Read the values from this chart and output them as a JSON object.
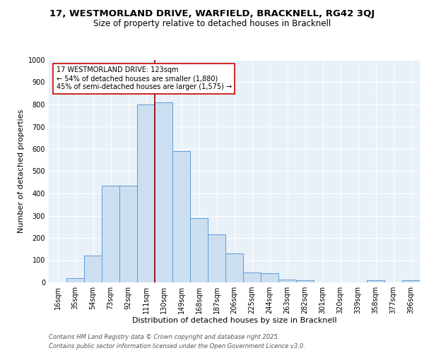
{
  "title_line1": "17, WESTMORLAND DRIVE, WARFIELD, BRACKNELL, RG42 3QJ",
  "title_line2": "Size of property relative to detached houses in Bracknell",
  "xlabel": "Distribution of detached houses by size in Bracknell",
  "ylabel": "Number of detached properties",
  "bar_labels": [
    "16sqm",
    "35sqm",
    "54sqm",
    "73sqm",
    "92sqm",
    "111sqm",
    "130sqm",
    "149sqm",
    "168sqm",
    "187sqm",
    "206sqm",
    "225sqm",
    "244sqm",
    "263sqm",
    "282sqm",
    "301sqm",
    "320sqm",
    "339sqm",
    "358sqm",
    "377sqm",
    "396sqm"
  ],
  "bar_values": [
    0,
    20,
    120,
    435,
    435,
    800,
    810,
    590,
    290,
    215,
    130,
    45,
    42,
    12,
    10,
    0,
    0,
    0,
    8,
    0,
    8
  ],
  "bar_color": "#ccdff0",
  "bar_edge_color": "#5b9bd5",
  "background_color": "#e8f0f8",
  "grid_color": "#ffffff",
  "vline_color": "#8b0000",
  "annotation_title": "17 WESTMORLAND DRIVE: 123sqm",
  "annotation_line1": "← 54% of detached houses are smaller (1,880)",
  "annotation_line2": "45% of semi-detached houses are larger (1,575) →",
  "annotation_box_color": "#ffffff",
  "annotation_box_edge": "#cc0000",
  "ylim": [
    0,
    1000
  ],
  "yticks": [
    0,
    100,
    200,
    300,
    400,
    500,
    600,
    700,
    800,
    900,
    1000
  ],
  "footer_line1": "Contains HM Land Registry data © Crown copyright and database right 2025.",
  "footer_line2": "Contains public sector information licensed under the Open Government Licence v3.0.",
  "title_fontsize": 9.5,
  "subtitle_fontsize": 8.5,
  "axis_label_fontsize": 8,
  "tick_fontsize": 7,
  "annotation_fontsize": 7,
  "footer_fontsize": 6
}
